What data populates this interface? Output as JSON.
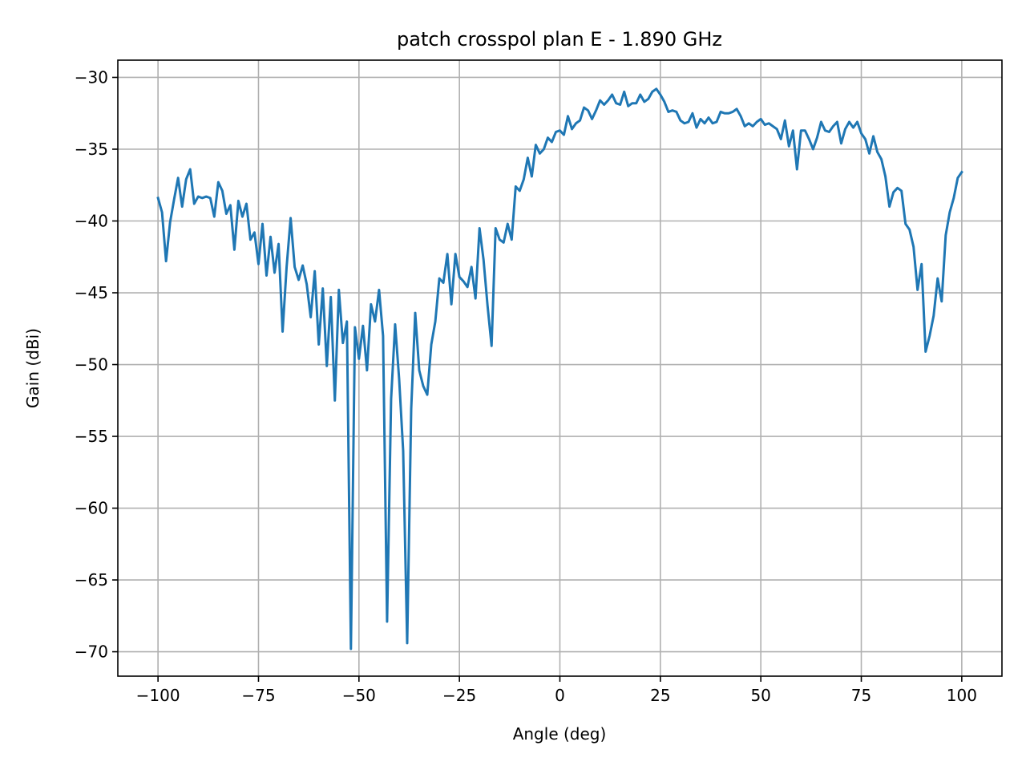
{
  "chart_data": {
    "type": "line",
    "title": "patch crosspol plan E - 1.890 GHz",
    "xlabel": "Angle (deg)",
    "ylabel": "Gain (dBi)",
    "xlim": [
      -110,
      110
    ],
    "ylim": [
      -71.7,
      -28.8
    ],
    "xticks": [
      -100,
      -75,
      -50,
      -25,
      0,
      25,
      50,
      75,
      100
    ],
    "yticks": [
      -30,
      -35,
      -40,
      -45,
      -50,
      -55,
      -60,
      -65,
      -70
    ],
    "xtick_labels": [
      "−100",
      "−75",
      "−50",
      "−25",
      "0",
      "25",
      "50",
      "75",
      "100"
    ],
    "ytick_labels": [
      "−30",
      "−35",
      "−40",
      "−45",
      "−50",
      "−55",
      "−60",
      "−65",
      "−70"
    ],
    "grid": true,
    "series_color": "#1f77b4",
    "series": [
      {
        "x": [
          -100,
          -99,
          -98,
          -97,
          -96,
          -95,
          -94,
          -93,
          -92,
          -91,
          -90,
          -89,
          -88,
          -87,
          -86,
          -85,
          -84,
          -83,
          -82,
          -81,
          -80,
          -79,
          -78,
          -77,
          -76,
          -75,
          -74,
          -73,
          -72,
          -71,
          -70,
          -69,
          -68,
          -67,
          -66,
          -65,
          -64,
          -63,
          -62,
          -61,
          -60,
          -59,
          -58,
          -57,
          -56,
          -55,
          -54,
          -53,
          -52,
          -51,
          -50,
          -49,
          -48,
          -47,
          -46,
          -45,
          -44,
          -43,
          -42,
          -41,
          -40,
          -39,
          -38,
          -37,
          -36,
          -35,
          -34,
          -33,
          -32,
          -31,
          -30,
          -29,
          -28,
          -27,
          -26,
          -25,
          -24,
          -23,
          -22,
          -21,
          -20,
          -19,
          -18,
          -17,
          -16,
          -15,
          -14,
          -13,
          -12,
          -11,
          -10,
          -9,
          -8,
          -7,
          -6,
          -5,
          -4,
          -3,
          -2,
          -1,
          0,
          1,
          2,
          3,
          4,
          5,
          6,
          7,
          8,
          9,
          10,
          11,
          12,
          13,
          14,
          15,
          16,
          17,
          18,
          19,
          20,
          21,
          22,
          23,
          24,
          25,
          26,
          27,
          28,
          29,
          30,
          31,
          32,
          33,
          34,
          35,
          36,
          37,
          38,
          39,
          40,
          41,
          42,
          43,
          44,
          45,
          46,
          47,
          48,
          49,
          50,
          51,
          52,
          53,
          54,
          55,
          56,
          57,
          58,
          59,
          60,
          61,
          62,
          63,
          64,
          65,
          66,
          67,
          68,
          69,
          70,
          71,
          72,
          73,
          74,
          75,
          76,
          77,
          78,
          79,
          80,
          81,
          82,
          83,
          84,
          85,
          86,
          87,
          88,
          89,
          90,
          91,
          92,
          93,
          94,
          95,
          96,
          97,
          98,
          99,
          100
        ],
        "values": [
          -38.4,
          -39.4,
          -42.8,
          -40.1,
          -38.5,
          -37.0,
          -39.0,
          -37.1,
          -36.4,
          -38.8,
          -38.3,
          -38.4,
          -38.3,
          -38.4,
          -39.7,
          -37.3,
          -37.9,
          -39.5,
          -38.9,
          -42.0,
          -38.6,
          -39.7,
          -38.8,
          -41.3,
          -40.8,
          -43.0,
          -40.2,
          -43.8,
          -41.1,
          -43.6,
          -41.6,
          -47.7,
          -43.2,
          -39.8,
          -43.2,
          -44.1,
          -43.1,
          -44.4,
          -46.7,
          -43.5,
          -48.6,
          -44.7,
          -50.1,
          -45.3,
          -52.5,
          -44.8,
          -48.5,
          -47.0,
          -69.8,
          -47.4,
          -49.6,
          -47.3,
          -50.4,
          -45.8,
          -47.0,
          -44.8,
          -48.0,
          -67.9,
          -52.4,
          -47.2,
          -51.0,
          -56.0,
          -69.4,
          -53.1,
          -46.4,
          -50.4,
          -51.5,
          -52.1,
          -48.6,
          -47.0,
          -44.0,
          -44.3,
          -42.3,
          -45.8,
          -42.3,
          -43.9,
          -44.2,
          -44.6,
          -43.2,
          -45.4,
          -40.5,
          -42.7,
          -45.9,
          -48.7,
          -40.5,
          -41.3,
          -41.5,
          -40.2,
          -41.3,
          -37.6,
          -37.9,
          -37.1,
          -35.6,
          -36.9,
          -34.7,
          -35.3,
          -35.0,
          -34.2,
          -34.5,
          -33.8,
          -33.7,
          -34.0,
          -32.7,
          -33.6,
          -33.2,
          -33.0,
          -32.1,
          -32.3,
          -32.9,
          -32.3,
          -31.6,
          -31.9,
          -31.6,
          -31.2,
          -31.8,
          -31.9,
          -31.0,
          -32.0,
          -31.8,
          -31.8,
          -31.2,
          -31.7,
          -31.5,
          -31.0,
          -30.8,
          -31.2,
          -31.7,
          -32.4,
          -32.3,
          -32.4,
          -33.0,
          -33.2,
          -33.1,
          -32.5,
          -33.5,
          -32.9,
          -33.2,
          -32.8,
          -33.2,
          -33.1,
          -32.4,
          -32.5,
          -32.5,
          -32.4,
          -32.2,
          -32.7,
          -33.4,
          -33.2,
          -33.4,
          -33.1,
          -32.9,
          -33.3,
          -33.2,
          -33.4,
          -33.6,
          -34.3,
          -33.0,
          -34.8,
          -33.7,
          -36.4,
          -33.7,
          -33.7,
          -34.3,
          -35.0,
          -34.2,
          -33.1,
          -33.7,
          -33.8,
          -33.4,
          -33.1,
          -34.6,
          -33.6,
          -33.1,
          -33.5,
          -33.1,
          -33.9,
          -34.3,
          -35.3,
          -34.1,
          -35.2,
          -35.7,
          -36.9,
          -39.0,
          -38.0,
          -37.7,
          -37.9,
          -40.2,
          -40.6,
          -41.8,
          -44.8,
          -43.0,
          -49.1,
          -48.0,
          -46.6,
          -44.0,
          -45.6,
          -41.0,
          -39.4,
          -38.4,
          -37.0,
          -36.6
        ]
      }
    ]
  }
}
